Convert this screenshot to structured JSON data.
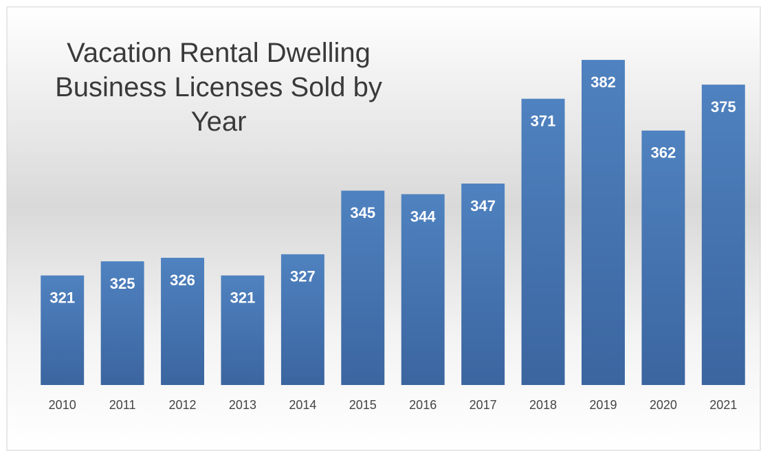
{
  "chart_data": {
    "type": "bar",
    "title": "Vacation Rental Dwelling Business Licenses Sold by Year",
    "categories": [
      "2010",
      "2011",
      "2012",
      "2013",
      "2014",
      "2015",
      "2016",
      "2017",
      "2018",
      "2019",
      "2020",
      "2021"
    ],
    "values": [
      321,
      325,
      326,
      321,
      327,
      345,
      344,
      347,
      371,
      382,
      362,
      375
    ],
    "color": "#4a7ab8",
    "ylim": [
      290,
      390
    ]
  }
}
